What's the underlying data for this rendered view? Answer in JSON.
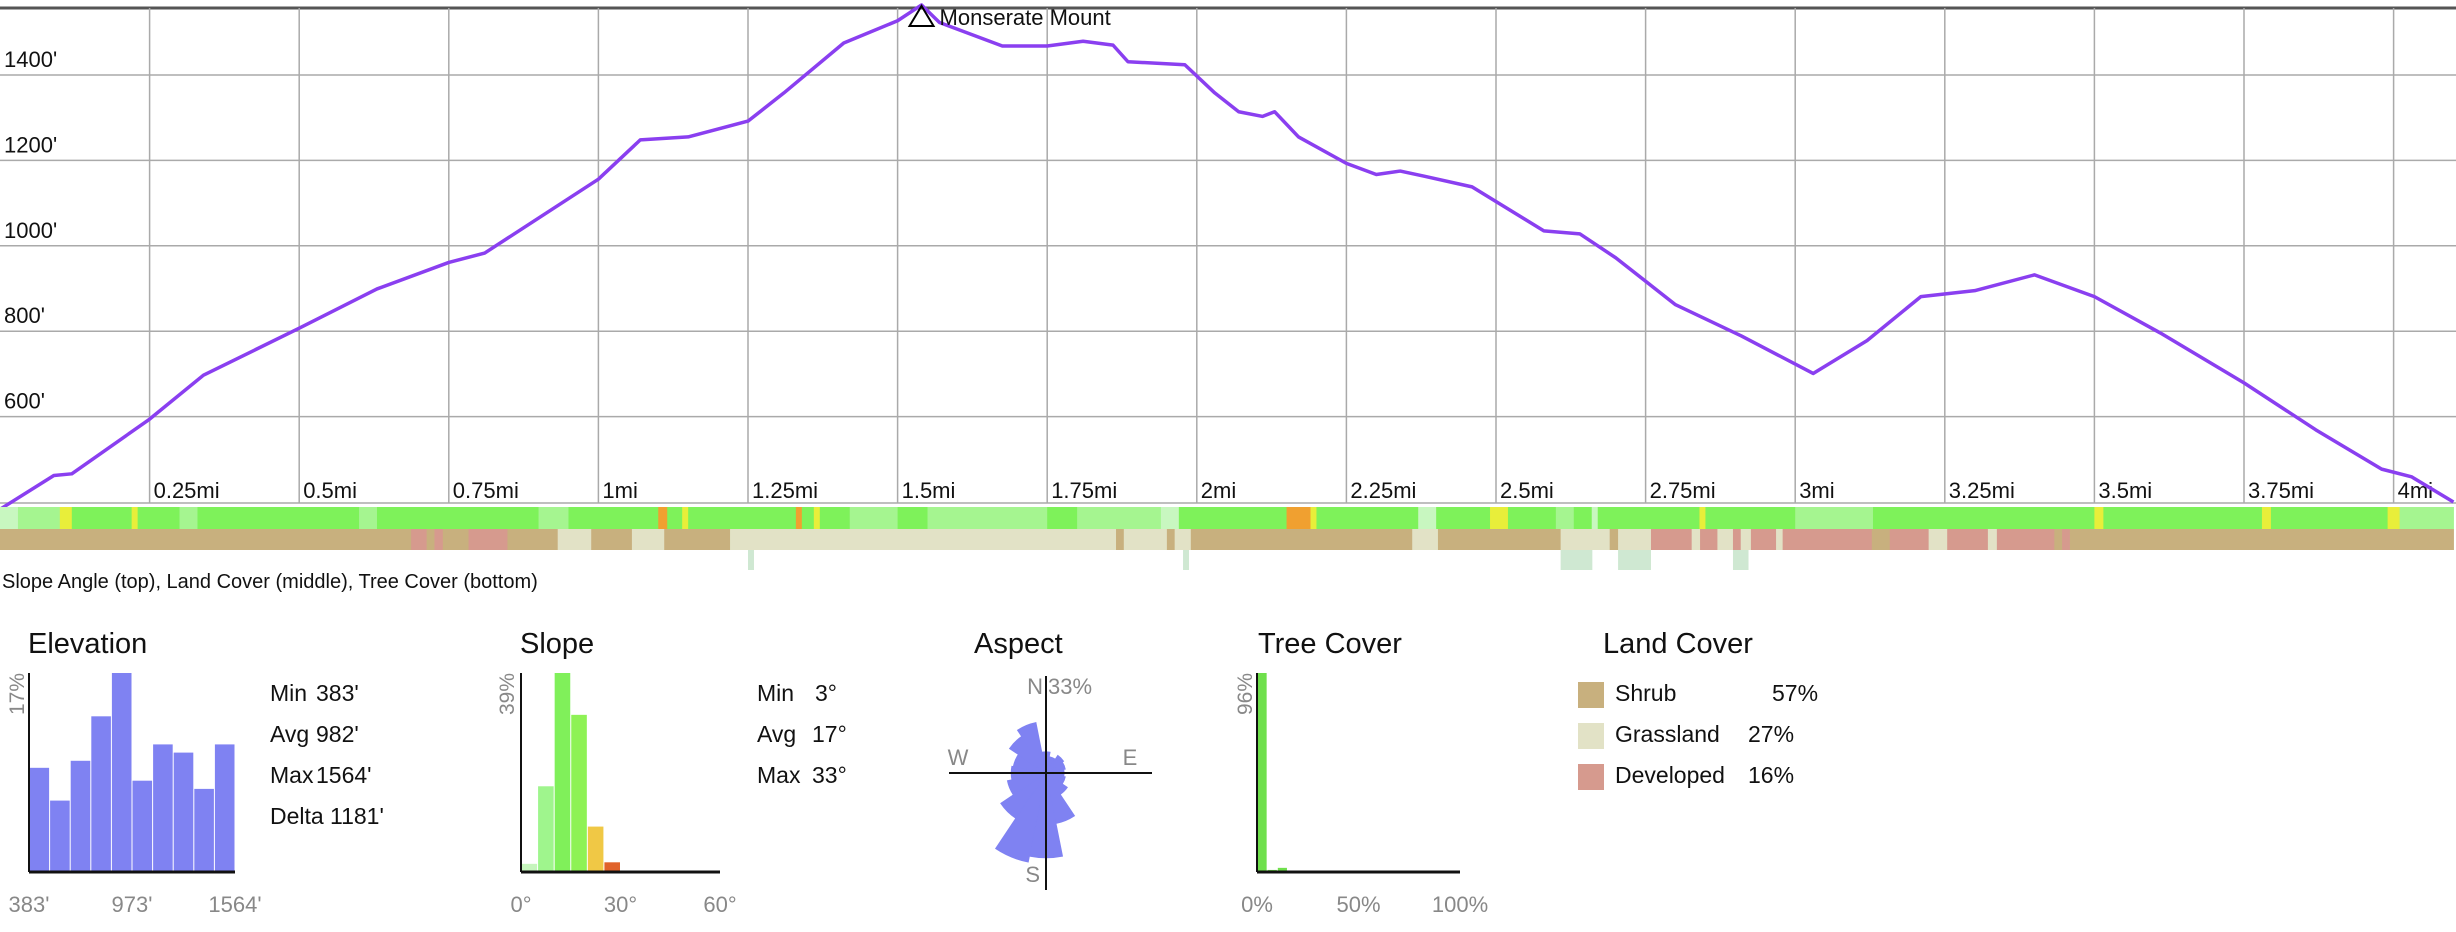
{
  "chart_data": [
    {
      "type": "line",
      "title": "",
      "x_unit": "mi",
      "y_unit": "ft",
      "xlim": [
        0,
        4.1
      ],
      "ylim": [
        400,
        1576
      ],
      "grid": true,
      "y_ticks": [
        {
          "value": 1400,
          "label": "1400'"
        },
        {
          "value": 1200,
          "label": "1200'"
        },
        {
          "value": 1000,
          "label": "1000'"
        },
        {
          "value": 800,
          "label": "800'"
        },
        {
          "value": 600,
          "label": "600'"
        }
      ],
      "x_ticks": [
        {
          "value": 0.25,
          "label": "0.25mi"
        },
        {
          "value": 0.5,
          "label": "0.5mi"
        },
        {
          "value": 0.75,
          "label": "0.75mi"
        },
        {
          "value": 1,
          "label": "1mi"
        },
        {
          "value": 1.25,
          "label": "1.25mi"
        },
        {
          "value": 1.5,
          "label": "1.5mi"
        },
        {
          "value": 1.75,
          "label": "1.75mi"
        },
        {
          "value": 2,
          "label": "2mi"
        },
        {
          "value": 2.25,
          "label": "2.25mi"
        },
        {
          "value": 2.5,
          "label": "2.5mi"
        },
        {
          "value": 2.75,
          "label": "2.75mi"
        },
        {
          "value": 3,
          "label": "3mi"
        },
        {
          "value": 3.25,
          "label": "3.25mi"
        },
        {
          "value": 3.5,
          "label": "3.5mi"
        },
        {
          "value": 3.75,
          "label": "3.75mi"
        },
        {
          "value": 4,
          "label": "4mi"
        }
      ],
      "line_color": "#8a3ff0",
      "points": [
        [
          0,
          383
        ],
        [
          0.09,
          462
        ],
        [
          0.12,
          466
        ],
        [
          0.25,
          594
        ],
        [
          0.34,
          697
        ],
        [
          0.5,
          807
        ],
        [
          0.63,
          899
        ],
        [
          0.75,
          961
        ],
        [
          0.81,
          983
        ],
        [
          1.0,
          1156
        ],
        [
          1.07,
          1248
        ],
        [
          1.15,
          1255
        ],
        [
          1.25,
          1292
        ],
        [
          1.31,
          1358
        ],
        [
          1.41,
          1475
        ],
        [
          1.5,
          1527
        ],
        [
          1.54,
          1564
        ],
        [
          1.57,
          1523
        ],
        [
          1.675,
          1468
        ],
        [
          1.75,
          1468
        ],
        [
          1.81,
          1479
        ],
        [
          1.86,
          1470
        ],
        [
          1.885,
          1431
        ],
        [
          1.98,
          1424
        ],
        [
          2.03,
          1358
        ],
        [
          2.07,
          1314
        ],
        [
          2.11,
          1303
        ],
        [
          2.13,
          1314
        ],
        [
          2.17,
          1255
        ],
        [
          2.25,
          1193
        ],
        [
          2.3,
          1167
        ],
        [
          2.34,
          1175
        ],
        [
          2.38,
          1163
        ],
        [
          2.46,
          1138
        ],
        [
          2.58,
          1035
        ],
        [
          2.64,
          1028
        ],
        [
          2.7,
          972
        ],
        [
          2.8,
          862
        ],
        [
          2.91,
          789
        ],
        [
          3.03,
          701
        ],
        [
          3.12,
          778
        ],
        [
          3.21,
          881
        ],
        [
          3.3,
          895
        ],
        [
          3.4,
          932
        ],
        [
          3.5,
          881
        ],
        [
          3.61,
          796
        ],
        [
          3.75,
          679
        ],
        [
          3.87,
          569
        ],
        [
          3.98,
          477
        ],
        [
          4.03,
          459
        ],
        [
          4.1,
          400
        ]
      ],
      "annotations": [
        {
          "label": "Monserate Mount",
          "x": 1.54,
          "y": 1564,
          "icon": "summit-triangle-icon"
        }
      ]
    },
    {
      "type": "bands",
      "caption": "Slope Angle (top), Land Cover (middle), Tree Cover (bottom)",
      "slope_segments": [
        [
          0,
          0.03,
          4
        ],
        [
          0.03,
          0.1,
          8
        ],
        [
          0.1,
          0.12,
          21
        ],
        [
          0.12,
          0.2,
          16
        ],
        [
          0.2,
          0.22,
          12
        ],
        [
          0.22,
          0.23,
          21
        ],
        [
          0.23,
          0.3,
          15
        ],
        [
          0.3,
          0.33,
          8
        ],
        [
          0.33,
          0.6,
          15
        ],
        [
          0.6,
          0.63,
          8
        ],
        [
          0.63,
          0.9,
          15
        ],
        [
          0.9,
          0.95,
          9
        ],
        [
          0.95,
          1.1,
          16
        ],
        [
          1.1,
          1.115,
          27
        ],
        [
          1.115,
          1.14,
          18
        ],
        [
          1.14,
          1.15,
          22
        ],
        [
          1.15,
          1.22,
          15
        ],
        [
          1.22,
          1.26,
          12
        ],
        [
          1.26,
          1.33,
          17
        ],
        [
          1.33,
          1.34,
          27
        ],
        [
          1.34,
          1.36,
          19
        ],
        [
          1.36,
          1.37,
          23
        ],
        [
          1.37,
          1.42,
          16
        ],
        [
          1.42,
          1.5,
          8
        ],
        [
          1.5,
          1.55,
          15
        ],
        [
          1.55,
          1.6,
          6
        ],
        [
          1.6,
          1.75,
          9
        ],
        [
          1.75,
          1.8,
          15
        ],
        [
          1.8,
          1.94,
          7
        ],
        [
          1.94,
          1.97,
          3
        ],
        [
          1.97,
          2.15,
          15
        ],
        [
          2.15,
          2.19,
          27
        ],
        [
          2.19,
          2.2,
          23
        ],
        [
          2.2,
          2.37,
          15
        ],
        [
          2.37,
          2.4,
          4
        ],
        [
          2.4,
          2.49,
          13
        ],
        [
          2.49,
          2.52,
          21
        ],
        [
          2.52,
          2.6,
          16
        ],
        [
          2.6,
          2.63,
          6
        ],
        [
          2.63,
          2.66,
          15
        ],
        [
          2.66,
          2.67,
          3
        ],
        [
          2.67,
          2.84,
          15
        ],
        [
          2.84,
          2.85,
          22
        ],
        [
          2.85,
          2.88,
          19
        ],
        [
          2.88,
          3.0,
          15
        ],
        [
          3.0,
          3.13,
          8
        ],
        [
          3.13,
          3.3,
          15
        ],
        [
          3.3,
          3.5,
          10
        ],
        [
          3.5,
          3.515,
          21
        ],
        [
          3.515,
          3.7,
          11
        ],
        [
          3.7,
          3.78,
          15
        ],
        [
          3.78,
          3.795,
          21
        ],
        [
          3.795,
          3.99,
          12
        ],
        [
          3.99,
          4.01,
          21
        ],
        [
          4.01,
          4.1,
          7
        ]
      ],
      "landcover_segments": [
        [
          0,
          0.687,
          "Shrub"
        ],
        [
          0.687,
          0.713,
          "Developed"
        ],
        [
          0.713,
          0.726,
          "Shrub"
        ],
        [
          0.726,
          0.74,
          "Developed"
        ],
        [
          0.74,
          0.783,
          "Shrub"
        ],
        [
          0.783,
          0.848,
          "Developed"
        ],
        [
          0.848,
          0.932,
          "Shrub"
        ],
        [
          0.932,
          0.988,
          "Grassland"
        ],
        [
          0.988,
          1.056,
          "Shrub"
        ],
        [
          1.056,
          1.11,
          "Grassland"
        ],
        [
          1.11,
          1.22,
          "Shrub"
        ],
        [
          1.22,
          1.865,
          "Grassland"
        ],
        [
          1.865,
          1.878,
          "Shrub"
        ],
        [
          1.878,
          1.95,
          "Grassland"
        ],
        [
          1.95,
          1.963,
          "Shrub"
        ],
        [
          1.963,
          1.99,
          "Grassland"
        ],
        [
          1.99,
          2.36,
          "Shrub"
        ],
        [
          2.36,
          2.403,
          "Grassland"
        ],
        [
          2.403,
          2.608,
          "Shrub"
        ],
        [
          2.608,
          2.69,
          "Grassland"
        ],
        [
          2.69,
          2.704,
          "Shrub"
        ],
        [
          2.704,
          2.759,
          "Grassland"
        ],
        [
          2.759,
          2.827,
          "Developed"
        ],
        [
          2.827,
          2.841,
          "Grassland"
        ],
        [
          2.841,
          2.87,
          "Developed"
        ],
        [
          2.87,
          2.896,
          "Grassland"
        ],
        [
          2.896,
          2.909,
          "Developed"
        ],
        [
          2.909,
          2.926,
          "Grassland"
        ],
        [
          2.926,
          2.968,
          "Developed"
        ],
        [
          2.968,
          2.979,
          "Grassland"
        ],
        [
          2.979,
          3.128,
          "Developed"
        ],
        [
          3.128,
          3.158,
          "Shrub"
        ],
        [
          3.158,
          3.223,
          "Developed"
        ],
        [
          3.223,
          3.254,
          "Grassland"
        ],
        [
          3.254,
          3.322,
          "Developed"
        ],
        [
          3.322,
          3.337,
          "Grassland"
        ],
        [
          3.337,
          3.433,
          "Developed"
        ],
        [
          3.433,
          3.446,
          "Shrub"
        ],
        [
          3.446,
          3.459,
          "Developed"
        ],
        [
          3.459,
          4.1,
          "Shrub"
        ]
      ],
      "treecover_segments": [
        [
          1.25,
          1.26
        ],
        [
          1.977,
          1.987
        ],
        [
          2.608,
          2.661
        ],
        [
          2.704,
          2.759
        ],
        [
          2.896,
          2.922
        ]
      ]
    },
    {
      "type": "bar",
      "title": "Elevation",
      "y_max_label": "17%",
      "y_max": 17,
      "x_labels": [
        "383'",
        "973'",
        "1564'"
      ],
      "values": [
        8.9,
        6.1,
        9.5,
        13.3,
        17,
        7.8,
        10.9,
        10.2,
        7.1,
        10.9
      ],
      "color": "#7f82f2",
      "stats": [
        {
          "label": "Min",
          "value": "383'"
        },
        {
          "label": "Avg",
          "value": "982'"
        },
        {
          "label": "Max",
          "value": "1564'"
        },
        {
          "label": "Delta",
          "value": "1181'"
        }
      ]
    },
    {
      "type": "bar",
      "title": "Slope",
      "y_max_label": "39%",
      "y_max": 39,
      "x_labels": [
        "0°",
        "30°",
        "60°"
      ],
      "bin_width_deg": 5,
      "x_range": [
        0,
        60
      ],
      "values": [
        1.6,
        16.8,
        39,
        30.8,
        8.9,
        1.9
      ],
      "colors": [
        "#c6f5bd",
        "#9ff58d",
        "#80f05a",
        "#8ef255",
        "#f0c845",
        "#e0622a"
      ],
      "stats": [
        {
          "label": "Min",
          "value": "3°"
        },
        {
          "label": "Avg",
          "value": "17°"
        },
        {
          "label": "Max",
          "value": "33°"
        }
      ]
    },
    {
      "type": "rose",
      "title": "Aspect",
      "max_label": "33%",
      "max": 33,
      "directions": [
        "N",
        "NNE",
        "NE",
        "ENE",
        "E",
        "ESE",
        "SE",
        "SSE",
        "S",
        "SSW",
        "SW",
        "WSW",
        "W",
        "WNW",
        "NW",
        "NNW"
      ],
      "values": [
        7,
        5.5,
        7,
        6.5,
        6,
        6.5,
        8.5,
        17,
        28,
        30,
        18,
        13,
        11.5,
        11,
        14.5,
        17
      ],
      "compass_labels": {
        "n": "N",
        "e": "E",
        "s": "S",
        "w": "W"
      },
      "color": "#7f82f2"
    },
    {
      "type": "bar",
      "title": "Tree Cover",
      "y_max_label": "96%",
      "y_max": 96,
      "x_labels": [
        "0%",
        "50%",
        "100%"
      ],
      "bins": [
        [
          0,
          5
        ],
        [
          5,
          10
        ],
        [
          10,
          15
        ]
      ],
      "values": [
        96,
        1,
        2
      ],
      "color": "#6fe04c"
    },
    {
      "type": "legend",
      "title": "Land Cover",
      "items": [
        {
          "label": "Shrub",
          "value": "57%",
          "color": "#c8b07e"
        },
        {
          "label": "Grassland",
          "value": "27%",
          "color": "#e2e2c6"
        },
        {
          "label": "Developed",
          "value": "16%",
          "color": "#d69a8e"
        }
      ]
    }
  ]
}
